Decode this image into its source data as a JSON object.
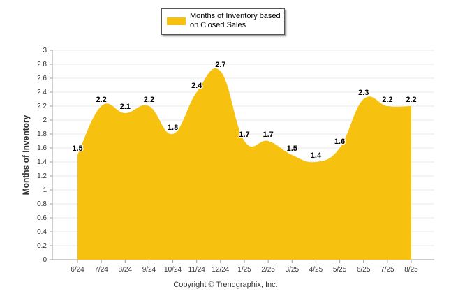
{
  "chart_data": {
    "type": "area",
    "categories": [
      "6/24",
      "7/24",
      "8/24",
      "9/24",
      "10/24",
      "11/24",
      "12/24",
      "1/25",
      "2/25",
      "3/25",
      "4/25",
      "5/25",
      "6/25",
      "7/25",
      "8/25"
    ],
    "series": [
      {
        "name": "Months of Inventory based on Closed Sales",
        "values": [
          1.5,
          2.2,
          2.1,
          2.2,
          1.8,
          2.4,
          2.7,
          1.7,
          1.7,
          1.5,
          1.4,
          1.6,
          2.3,
          2.2,
          2.2
        ]
      }
    ],
    "data_labels": [
      "1.5",
      "2.2",
      "2.1",
      "2.2",
      "1.8",
      "2.4",
      "2.7",
      "1.7",
      "1.7",
      "1.5",
      "1.4",
      "1.6",
      "2.3",
      "2.2",
      "2.2"
    ],
    "ylabel": "Months of Inventory",
    "ylim": [
      0,
      3
    ],
    "yticks": [
      "0",
      "0.2",
      "0.4",
      "0.6",
      "0.8",
      "1",
      "1.2",
      "1.4",
      "1.6",
      "1.8",
      "2",
      "2.2",
      "2.4",
      "2.6",
      "2.8",
      "3"
    ],
    "grid": true,
    "legend_position": "top-center",
    "color": "#f7c10f"
  },
  "legend": {
    "label": "Months of Inventory based on Closed Sales"
  },
  "footer": {
    "copyright": "Copyright © Trendgraphix, Inc."
  }
}
